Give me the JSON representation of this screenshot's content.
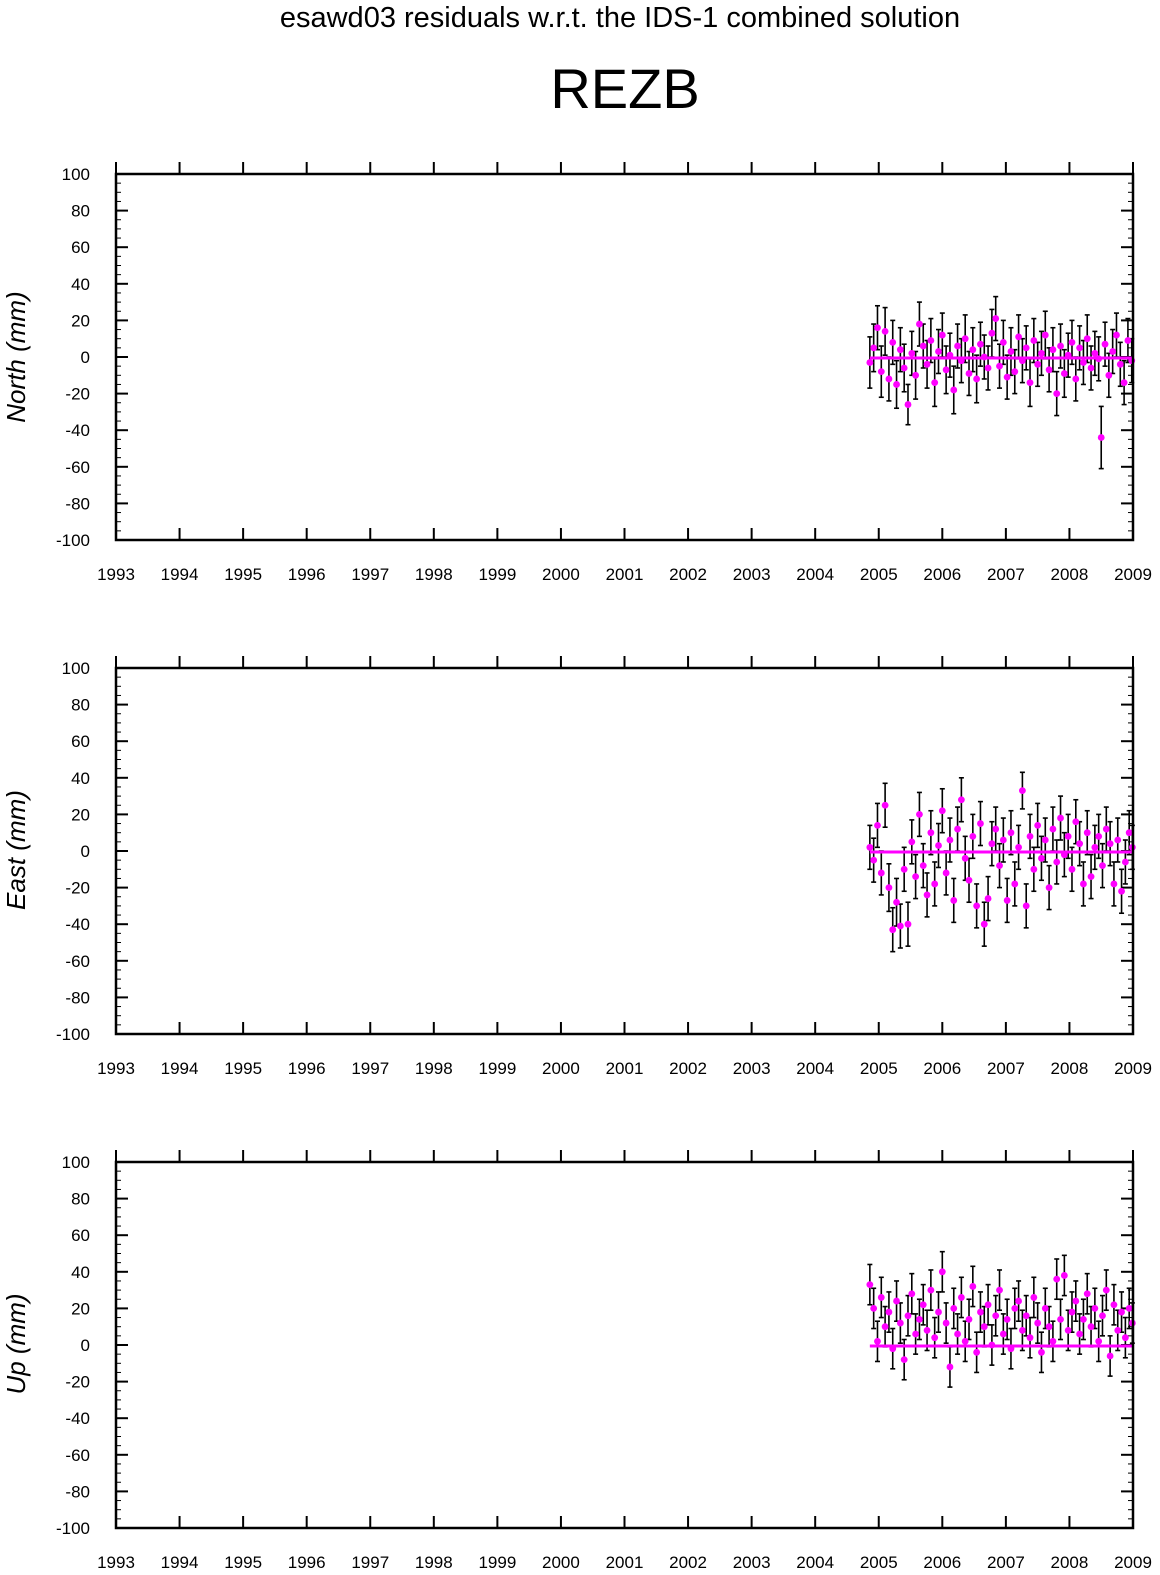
{
  "figure": {
    "title": "esawd03 residuals w.r.t. the IDS-1 combined solution",
    "station": "REZB"
  },
  "colors": {
    "marker": "#ff00ff",
    "errorbar": "#000000",
    "axis": "#000000"
  },
  "chart_data": [
    {
      "type": "scatter",
      "panel": "north",
      "ylabel": "North (mm)",
      "xlim": [
        1993,
        2009
      ],
      "ylim": [
        -100,
        100
      ],
      "x_ticks": [
        "1993",
        "1994",
        "1995",
        "1996",
        "1997",
        "1998",
        "1999",
        "2000",
        "2001",
        "2002",
        "2003",
        "2004",
        "2005",
        "2006",
        "2007",
        "2008",
        "2009"
      ],
      "y_ticks": [
        "100",
        "80",
        "60",
        "40",
        "20",
        "0",
        "-20",
        "-40",
        "-60",
        "-80",
        "-100"
      ],
      "x": [
        2004.86,
        2004.92,
        2004.98,
        2005.04,
        2005.1,
        2005.16,
        2005.22,
        2005.28,
        2005.34,
        2005.4,
        2005.46,
        2005.52,
        2005.58,
        2005.64,
        2005.7,
        2005.76,
        2005.82,
        2005.88,
        2005.94,
        2006.0,
        2006.06,
        2006.12,
        2006.18,
        2006.24,
        2006.3,
        2006.36,
        2006.42,
        2006.48,
        2006.54,
        2006.6,
        2006.66,
        2006.72,
        2006.78,
        2006.84,
        2006.9,
        2006.96,
        2007.02,
        2007.08,
        2007.14,
        2007.2,
        2007.26,
        2007.32,
        2007.38,
        2007.44,
        2007.5,
        2007.56,
        2007.62,
        2007.68,
        2007.74,
        2007.8,
        2007.86,
        2007.92,
        2007.98,
        2008.04,
        2008.1,
        2008.16,
        2008.22,
        2008.28,
        2008.34,
        2008.4,
        2008.46,
        2008.5,
        2008.56,
        2008.62,
        2008.68,
        2008.74,
        2008.8,
        2008.86,
        2008.92,
        2008.98
      ],
      "values": [
        -3,
        5,
        16,
        -8,
        14,
        -12,
        8,
        -15,
        4,
        -6,
        -26,
        2,
        -10,
        18,
        6,
        -4,
        9,
        -14,
        3,
        12,
        -7,
        1,
        -18,
        6,
        -2,
        10,
        -9,
        4,
        -12,
        7,
        0,
        -6,
        13,
        21,
        -5,
        8,
        -11,
        3,
        -8,
        11,
        -2,
        5,
        -14,
        9,
        -4,
        2,
        12,
        -7,
        4,
        -20,
        6,
        -9,
        1,
        8,
        -12,
        5,
        -3,
        10,
        -6,
        2,
        -1,
        -44,
        7,
        -10,
        3,
        12,
        -4,
        -14,
        9,
        -2
      ],
      "errors": [
        14,
        13,
        12,
        14,
        13,
        12,
        12,
        13,
        12,
        13,
        11,
        12,
        13,
        12,
        12,
        13,
        12,
        13,
        12,
        12,
        13,
        12,
        13,
        12,
        12,
        13,
        12,
        12,
        13,
        12,
        12,
        12,
        13,
        12,
        12,
        12,
        12,
        13,
        12,
        12,
        12,
        12,
        13,
        12,
        12,
        12,
        13,
        12,
        12,
        12,
        12,
        13,
        12,
        12,
        12,
        12,
        12,
        13,
        12,
        12,
        12,
        17,
        12,
        12,
        12,
        12,
        12,
        12,
        12,
        12
      ]
    },
    {
      "type": "scatter",
      "panel": "east",
      "ylabel": "East (mm)",
      "xlim": [
        1993,
        2009
      ],
      "ylim": [
        -100,
        100
      ],
      "x_ticks": [
        "1993",
        "1994",
        "1995",
        "1996",
        "1997",
        "1998",
        "1999",
        "2000",
        "2001",
        "2002",
        "2003",
        "2004",
        "2005",
        "2006",
        "2007",
        "2008",
        "2009"
      ],
      "y_ticks": [
        "100",
        "80",
        "60",
        "40",
        "20",
        "0",
        "-20",
        "-40",
        "-60",
        "-80",
        "-100"
      ],
      "x": [
        2004.86,
        2004.92,
        2004.98,
        2005.04,
        2005.1,
        2005.16,
        2005.22,
        2005.28,
        2005.34,
        2005.4,
        2005.46,
        2005.52,
        2005.58,
        2005.64,
        2005.7,
        2005.76,
        2005.82,
        2005.88,
        2005.94,
        2006.0,
        2006.06,
        2006.12,
        2006.18,
        2006.24,
        2006.3,
        2006.36,
        2006.42,
        2006.48,
        2006.54,
        2006.6,
        2006.66,
        2006.72,
        2006.78,
        2006.84,
        2006.9,
        2006.96,
        2007.02,
        2007.08,
        2007.14,
        2007.2,
        2007.26,
        2007.32,
        2007.38,
        2007.44,
        2007.5,
        2007.56,
        2007.62,
        2007.68,
        2007.74,
        2007.8,
        2007.86,
        2007.92,
        2007.98,
        2008.04,
        2008.1,
        2008.16,
        2008.22,
        2008.28,
        2008.34,
        2008.4,
        2008.46,
        2008.52,
        2008.58,
        2008.64,
        2008.7,
        2008.76,
        2008.82,
        2008.88,
        2008.94,
        2008.99
      ],
      "values": [
        2,
        -5,
        14,
        -12,
        25,
        -20,
        -43,
        -28,
        -41,
        -10,
        -40,
        5,
        -14,
        20,
        -8,
        -24,
        10,
        -18,
        3,
        22,
        -12,
        6,
        -27,
        12,
        28,
        -4,
        -16,
        8,
        -30,
        15,
        -40,
        -26,
        4,
        12,
        -8,
        6,
        -27,
        10,
        -18,
        2,
        33,
        -30,
        8,
        -10,
        14,
        -4,
        6,
        -20,
        12,
        -6,
        18,
        -2,
        8,
        -10,
        16,
        4,
        -18,
        10,
        -14,
        2,
        8,
        -8,
        12,
        4,
        -18,
        6,
        -22,
        -6,
        10,
        2
      ],
      "errors": [
        12,
        12,
        12,
        12,
        12,
        13,
        12,
        13,
        12,
        12,
        12,
        12,
        12,
        12,
        12,
        12,
        12,
        12,
        12,
        12,
        12,
        12,
        12,
        12,
        12,
        12,
        12,
        12,
        12,
        12,
        12,
        12,
        12,
        12,
        12,
        12,
        12,
        12,
        12,
        12,
        10,
        12,
        12,
        12,
        12,
        12,
        12,
        12,
        12,
        12,
        12,
        12,
        12,
        12,
        12,
        12,
        12,
        12,
        12,
        12,
        12,
        12,
        12,
        12,
        12,
        12,
        12,
        12,
        12,
        12
      ]
    },
    {
      "type": "scatter",
      "panel": "up",
      "ylabel": "Up (mm)",
      "xlim": [
        1993,
        2009
      ],
      "ylim": [
        -100,
        100
      ],
      "x_ticks": [
        "1993",
        "1994",
        "1995",
        "1996",
        "1997",
        "1998",
        "1999",
        "2000",
        "2001",
        "2002",
        "2003",
        "2004",
        "2005",
        "2006",
        "2007",
        "2008",
        "2009"
      ],
      "y_ticks": [
        "100",
        "80",
        "60",
        "40",
        "20",
        "0",
        "-20",
        "-40",
        "-60",
        "-80",
        "-100"
      ],
      "x": [
        2004.86,
        2004.92,
        2004.98,
        2005.04,
        2005.1,
        2005.16,
        2005.22,
        2005.28,
        2005.34,
        2005.4,
        2005.46,
        2005.52,
        2005.58,
        2005.64,
        2005.7,
        2005.76,
        2005.82,
        2005.88,
        2005.94,
        2006.0,
        2006.06,
        2006.12,
        2006.18,
        2006.24,
        2006.3,
        2006.36,
        2006.42,
        2006.48,
        2006.54,
        2006.6,
        2006.66,
        2006.72,
        2006.78,
        2006.84,
        2006.9,
        2006.96,
        2007.02,
        2007.08,
        2007.14,
        2007.2,
        2007.26,
        2007.32,
        2007.38,
        2007.44,
        2007.5,
        2007.56,
        2007.62,
        2007.68,
        2007.74,
        2007.8,
        2007.86,
        2007.92,
        2007.98,
        2008.04,
        2008.1,
        2008.16,
        2008.22,
        2008.28,
        2008.34,
        2008.4,
        2008.46,
        2008.52,
        2008.58,
        2008.64,
        2008.7,
        2008.76,
        2008.82,
        2008.88,
        2008.94,
        2008.99
      ],
      "values": [
        33,
        20,
        2,
        26,
        10,
        18,
        -2,
        24,
        12,
        -8,
        16,
        28,
        6,
        14,
        22,
        8,
        30,
        4,
        18,
        40,
        12,
        -12,
        20,
        6,
        26,
        2,
        14,
        32,
        -4,
        18,
        10,
        22,
        0,
        16,
        30,
        6,
        14,
        -2,
        20,
        24,
        8,
        16,
        4,
        26,
        12,
        -4,
        20,
        10,
        2,
        36,
        14,
        38,
        8,
        18,
        24,
        6,
        14,
        28,
        10,
        20,
        2,
        16,
        30,
        -6,
        22,
        8,
        18,
        4,
        20,
        12
      ],
      "errors": [
        11,
        11,
        11,
        11,
        11,
        11,
        11,
        11,
        11,
        11,
        11,
        11,
        11,
        11,
        11,
        11,
        11,
        11,
        11,
        11,
        11,
        11,
        11,
        11,
        11,
        11,
        11,
        11,
        11,
        11,
        11,
        11,
        11,
        11,
        11,
        11,
        11,
        11,
        11,
        11,
        11,
        11,
        11,
        11,
        11,
        11,
        11,
        11,
        11,
        11,
        11,
        11,
        11,
        11,
        11,
        11,
        11,
        11,
        11,
        11,
        11,
        11,
        11,
        11,
        11,
        11,
        11,
        11,
        11,
        11
      ]
    }
  ]
}
